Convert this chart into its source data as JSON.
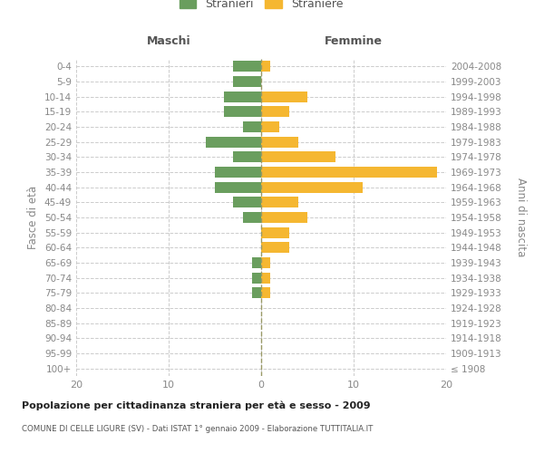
{
  "age_groups": [
    "100+",
    "95-99",
    "90-94",
    "85-89",
    "80-84",
    "75-79",
    "70-74",
    "65-69",
    "60-64",
    "55-59",
    "50-54",
    "45-49",
    "40-44",
    "35-39",
    "30-34",
    "25-29",
    "20-24",
    "15-19",
    "10-14",
    "5-9",
    "0-4"
  ],
  "birth_years": [
    "≤ 1908",
    "1909-1913",
    "1914-1918",
    "1919-1923",
    "1924-1928",
    "1929-1933",
    "1934-1938",
    "1939-1943",
    "1944-1948",
    "1949-1953",
    "1954-1958",
    "1959-1963",
    "1964-1968",
    "1969-1973",
    "1974-1978",
    "1979-1983",
    "1984-1988",
    "1989-1993",
    "1994-1998",
    "1999-2003",
    "2004-2008"
  ],
  "maschi": [
    0,
    0,
    0,
    0,
    0,
    1,
    1,
    1,
    0,
    0,
    2,
    3,
    5,
    5,
    3,
    6,
    2,
    4,
    4,
    3,
    3
  ],
  "femmine": [
    0,
    0,
    0,
    0,
    0,
    1,
    1,
    1,
    3,
    3,
    5,
    4,
    11,
    19,
    8,
    4,
    2,
    3,
    5,
    0,
    1
  ],
  "maschi_color": "#6a9e5e",
  "femmine_color": "#f5b731",
  "title": "Popolazione per cittadinanza straniera per età e sesso - 2009",
  "subtitle": "COMUNE DI CELLE LIGURE (SV) - Dati ISTAT 1° gennaio 2009 - Elaborazione TUTTITALIA.IT",
  "ylabel_left": "Fasce di età",
  "ylabel_right": "Anni di nascita",
  "xlabel_maschi": "Maschi",
  "xlabel_femmine": "Femmine",
  "legend_stranieri": "Stranieri",
  "legend_straniere": "Straniere",
  "xlim": 20,
  "background_color": "#ffffff",
  "grid_color": "#cccccc"
}
